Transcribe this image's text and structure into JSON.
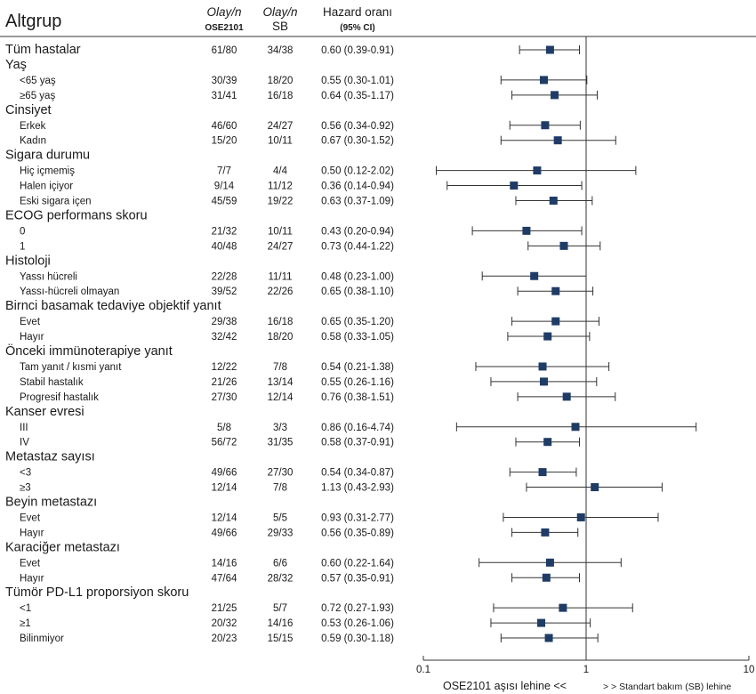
{
  "header": {
    "subgroup": "Altgrup",
    "col1_line1": "Olay/n",
    "col1_line2": "OSE2101",
    "col2_line1": "Olay/n",
    "col2_line2": "SB",
    "col3_line1": "Hazard oranı",
    "col3_line2": "(95% CI)"
  },
  "footer": {
    "left": "OSE2101 aşısı lehine <<",
    "right": "> > Standart bakım (SB) lehine"
  },
  "chart_data": {
    "type": "forest",
    "x_scale": "log",
    "xlim": [
      0.1,
      10
    ],
    "x_ticks": [
      0.1,
      1,
      10
    ],
    "x_tick_labels": [
      "0.1",
      "1",
      "10"
    ],
    "reference_line": 1,
    "rows": [
      {
        "kind": "cat",
        "label": "Tüm hastalar",
        "e1": "61/80",
        "e2": "34/38",
        "hr_text": "0.60 (0.39-0.91)",
        "hr": 0.6,
        "lo": 0.39,
        "hi": 0.91
      },
      {
        "kind": "cat",
        "label": "Yaş"
      },
      {
        "kind": "sub",
        "label": "<65 yaş",
        "e1": "30/39",
        "e2": "18/20",
        "hr_text": "0.55 (0.30-1.01)",
        "hr": 0.55,
        "lo": 0.3,
        "hi": 1.01
      },
      {
        "kind": "sub",
        "label": "≥65 yaş",
        "e1": "31/41",
        "e2": "16/18",
        "hr_text": "0.64 (0.35-1.17)",
        "hr": 0.64,
        "lo": 0.35,
        "hi": 1.17
      },
      {
        "kind": "cat",
        "label": "Cinsiyet"
      },
      {
        "kind": "sub",
        "label": "Erkek",
        "e1": "46/60",
        "e2": "24/27",
        "hr_text": "0.56 (0.34-0.92)",
        "hr": 0.56,
        "lo": 0.34,
        "hi": 0.92
      },
      {
        "kind": "sub",
        "label": "Kadın",
        "e1": "15/20",
        "e2": "10/11",
        "hr_text": "0.67 (0.30-1.52)",
        "hr": 0.67,
        "lo": 0.3,
        "hi": 1.52
      },
      {
        "kind": "cat",
        "label": "Sigara durumu"
      },
      {
        "kind": "sub",
        "label": "Hiç içmemiş",
        "e1": "7/7",
        "e2": "4/4",
        "hr_text": "0.50 (0.12-2.02)",
        "hr": 0.5,
        "lo": 0.12,
        "hi": 2.02
      },
      {
        "kind": "sub",
        "label": "Halen içiyor",
        "e1": "9/14",
        "e2": "11/12",
        "hr_text": "0.36 (0.14-0.94)",
        "hr": 0.36,
        "lo": 0.14,
        "hi": 0.94
      },
      {
        "kind": "sub",
        "label": "Eski sigara içen",
        "e1": "45/59",
        "e2": "19/22",
        "hr_text": "0.63 (0.37-1.09)",
        "hr": 0.63,
        "lo": 0.37,
        "hi": 1.09
      },
      {
        "kind": "cat",
        "label": "ECOG performans skoru"
      },
      {
        "kind": "sub",
        "label": "0",
        "e1": "21/32",
        "e2": "10/11",
        "hr_text": "0.43 (0.20-0.94)",
        "hr": 0.43,
        "lo": 0.2,
        "hi": 0.94
      },
      {
        "kind": "sub",
        "label": "1",
        "e1": "40/48",
        "e2": "24/27",
        "hr_text": "0.73 (0.44-1.22)",
        "hr": 0.73,
        "lo": 0.44,
        "hi": 1.22
      },
      {
        "kind": "cat",
        "label": "Histoloji"
      },
      {
        "kind": "sub",
        "label": "Yassı hücreli",
        "e1": "22/28",
        "e2": "11/11",
        "hr_text": "0.48 (0.23-1.00)",
        "hr": 0.48,
        "lo": 0.23,
        "hi": 1.0
      },
      {
        "kind": "sub",
        "label": "Yassı-hücreli olmayan",
        "e1": "39/52",
        "e2": "22/26",
        "hr_text": "0.65 (0.38-1.10)",
        "hr": 0.65,
        "lo": 0.38,
        "hi": 1.1
      },
      {
        "kind": "cat",
        "label": "Birnci basamak tedaviye objektif yanıt"
      },
      {
        "kind": "sub",
        "label": "Evet",
        "e1": "29/38",
        "e2": "16/18",
        "hr_text": "0.65 (0.35-1.20)",
        "hr": 0.65,
        "lo": 0.35,
        "hi": 1.2
      },
      {
        "kind": "sub",
        "label": "Hayır",
        "e1": "32/42",
        "e2": "18/20",
        "hr_text": "0.58 (0.33-1.05)",
        "hr": 0.58,
        "lo": 0.33,
        "hi": 1.05
      },
      {
        "kind": "cat",
        "label": "Önceki immünoterapiye yanıt"
      },
      {
        "kind": "sub",
        "label": "Tam yanıt / kısmi yanıt",
        "e1": "12/22",
        "e2": "7/8",
        "hr_text": "0.54 (0.21-1.38)",
        "hr": 0.54,
        "lo": 0.21,
        "hi": 1.38
      },
      {
        "kind": "sub",
        "label": "Stabil hastalık",
        "e1": "21/26",
        "e2": "13/14",
        "hr_text": "0.55 (0.26-1.16)",
        "hr": 0.55,
        "lo": 0.26,
        "hi": 1.16
      },
      {
        "kind": "sub",
        "label": "Progresif hastalık",
        "e1": "27/30",
        "e2": "12/14",
        "hr_text": "0.76 (0.38-1.51)",
        "hr": 0.76,
        "lo": 0.38,
        "hi": 1.51
      },
      {
        "kind": "cat",
        "label": "Kanser evresi"
      },
      {
        "kind": "sub",
        "label": "III",
        "e1": "5/8",
        "e2": "3/3",
        "hr_text": "0.86 (0.16-4.74)",
        "hr": 0.86,
        "lo": 0.16,
        "hi": 4.74
      },
      {
        "kind": "sub",
        "label": "IV",
        "e1": "56/72",
        "e2": "31/35",
        "hr_text": "0.58 (0.37-0.91)",
        "hr": 0.58,
        "lo": 0.37,
        "hi": 0.91
      },
      {
        "kind": "cat",
        "label": "Metastaz sayısı"
      },
      {
        "kind": "sub",
        "label": "<3",
        "e1": "49/66",
        "e2": "27/30",
        "hr_text": "0.54 (0.34-0.87)",
        "hr": 0.54,
        "lo": 0.34,
        "hi": 0.87
      },
      {
        "kind": "sub",
        "label": "≥3",
        "e1": "12/14",
        "e2": "7/8",
        "hr_text": "1.13 (0.43-2.93)",
        "hr": 1.13,
        "lo": 0.43,
        "hi": 2.93
      },
      {
        "kind": "cat",
        "label": "Beyin metastazı"
      },
      {
        "kind": "sub",
        "label": "Evet",
        "e1": "12/14",
        "e2": "5/5",
        "hr_text": "0.93 (0.31-2.77)",
        "hr": 0.93,
        "lo": 0.31,
        "hi": 2.77
      },
      {
        "kind": "sub",
        "label": "Hayır",
        "e1": "49/66",
        "e2": "29/33",
        "hr_text": "0.56 (0.35-0.89)",
        "hr": 0.56,
        "lo": 0.35,
        "hi": 0.89
      },
      {
        "kind": "cat",
        "label": "Karaciğer metastazı"
      },
      {
        "kind": "sub",
        "label": "Evet",
        "e1": "14/16",
        "e2": "6/6",
        "hr_text": "0.60 (0.22-1.64)",
        "hr": 0.6,
        "lo": 0.22,
        "hi": 1.64
      },
      {
        "kind": "sub",
        "label": "Hayır",
        "e1": "47/64",
        "e2": "28/32",
        "hr_text": "0.57 (0.35-0.91)",
        "hr": 0.57,
        "lo": 0.35,
        "hi": 0.91
      },
      {
        "kind": "cat",
        "label": "Tümör PD-L1 proporsiyon skoru"
      },
      {
        "kind": "sub",
        "label": "<1",
        "e1": "21/25",
        "e2": "5/7",
        "hr_text": "0.72 (0.27-1.93)",
        "hr": 0.72,
        "lo": 0.27,
        "hi": 1.93
      },
      {
        "kind": "sub",
        "label": "≥1",
        "e1": "20/32",
        "e2": "14/16",
        "hr_text": "0.53 (0.26-1.06)",
        "hr": 0.53,
        "lo": 0.26,
        "hi": 1.06
      },
      {
        "kind": "sub",
        "label": "Bilinmiyor",
        "e1": "20/23",
        "e2": "15/15",
        "hr_text": "0.59 (0.30-1.18)",
        "hr": 0.59,
        "lo": 0.3,
        "hi": 1.18
      }
    ]
  },
  "colors": {
    "marker": "#1f3c66",
    "line": "#333333",
    "text": "#1a1a1a"
  }
}
